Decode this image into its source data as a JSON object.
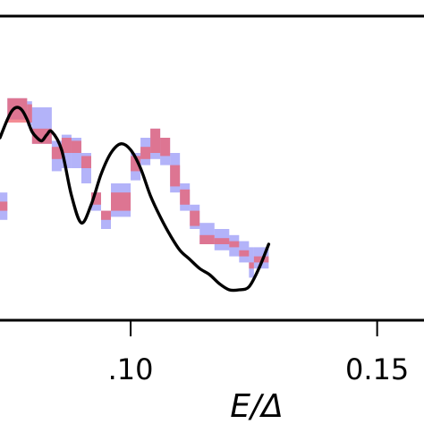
{
  "chart_data": {
    "type": "line",
    "xlabel": "E/Δ",
    "x_ticks": [
      {
        "value": 0.1,
        "label": ".10"
      },
      {
        "value": 0.15,
        "label": "0.15"
      }
    ],
    "xlim": [
      0.0735,
      0.1595
    ],
    "ylim": [
      0.0,
      1.0
    ],
    "grid": false,
    "step_bins": [
      {
        "x0": 0.0735,
        "x1": 0.075,
        "blue_low": 0.33,
        "blue_high": 0.42,
        "red_low": 0.36,
        "red_high": 0.39
      },
      {
        "x0": 0.075,
        "x1": 0.079,
        "blue_low": 0.66,
        "blue_high": 0.73,
        "red_low": 0.65,
        "red_high": 0.73
      },
      {
        "x0": 0.079,
        "x1": 0.08,
        "blue_low": 0.64,
        "blue_high": 0.72,
        "red_low": 0.65,
        "red_high": 0.71
      },
      {
        "x0": 0.08,
        "x1": 0.084,
        "blue_low": 0.58,
        "blue_high": 0.7,
        "red_low": 0.58,
        "red_high": 0.63
      },
      {
        "x0": 0.084,
        "x1": 0.086,
        "blue_low": 0.49,
        "blue_high": 0.59,
        "red_low": 0.53,
        "red_high": 0.57
      },
      {
        "x0": 0.086,
        "x1": 0.088,
        "blue_low": 0.5,
        "blue_high": 0.61,
        "red_low": 0.55,
        "red_high": 0.6
      },
      {
        "x0": 0.088,
        "x1": 0.09,
        "blue_low": 0.5,
        "blue_high": 0.6,
        "red_low": 0.55,
        "red_high": 0.59
      },
      {
        "x0": 0.09,
        "x1": 0.092,
        "blue_low": 0.45,
        "blue_high": 0.55,
        "red_low": 0.5,
        "red_high": 0.54
      },
      {
        "x0": 0.092,
        "x1": 0.094,
        "blue_low": 0.36,
        "blue_high": 0.42,
        "red_low": 0.38,
        "red_high": 0.42
      },
      {
        "x0": 0.094,
        "x1": 0.096,
        "blue_low": 0.3,
        "blue_high": 0.36,
        "red_low": 0.33,
        "red_high": 0.36
      },
      {
        "x0": 0.096,
        "x1": 0.1,
        "blue_low": 0.34,
        "blue_high": 0.45,
        "red_low": 0.36,
        "red_high": 0.42
      },
      {
        "x0": 0.1,
        "x1": 0.102,
        "blue_low": 0.46,
        "blue_high": 0.55,
        "red_low": 0.49,
        "red_high": 0.54
      },
      {
        "x0": 0.102,
        "x1": 0.104,
        "blue_low": 0.51,
        "blue_high": 0.6,
        "red_low": 0.53,
        "red_high": 0.57
      },
      {
        "x0": 0.104,
        "x1": 0.106,
        "blue_low": 0.53,
        "blue_high": 0.63,
        "red_low": 0.55,
        "red_high": 0.63
      },
      {
        "x0": 0.106,
        "x1": 0.108,
        "blue_low": 0.51,
        "blue_high": 0.6,
        "red_low": 0.54,
        "red_high": 0.6
      },
      {
        "x0": 0.108,
        "x1": 0.11,
        "blue_low": 0.42,
        "blue_high": 0.55,
        "red_low": 0.44,
        "red_high": 0.51
      },
      {
        "x0": 0.11,
        "x1": 0.112,
        "blue_low": 0.36,
        "blue_high": 0.45,
        "red_low": 0.38,
        "red_high": 0.43
      },
      {
        "x0": 0.112,
        "x1": 0.114,
        "blue_low": 0.3,
        "blue_high": 0.38,
        "red_low": 0.31,
        "red_high": 0.36
      },
      {
        "x0": 0.114,
        "x1": 0.117,
        "blue_low": 0.25,
        "blue_high": 0.32,
        "red_low": 0.25,
        "red_high": 0.28
      },
      {
        "x0": 0.117,
        "x1": 0.12,
        "blue_low": 0.23,
        "blue_high": 0.3,
        "red_low": 0.25,
        "red_high": 0.27
      },
      {
        "x0": 0.12,
        "x1": 0.122,
        "blue_low": 0.21,
        "blue_high": 0.28,
        "red_low": 0.24,
        "red_high": 0.26
      },
      {
        "x0": 0.122,
        "x1": 0.124,
        "blue_low": 0.19,
        "blue_high": 0.26,
        "red_low": 0.21,
        "red_high": 0.23
      },
      {
        "x0": 0.124,
        "x1": 0.125,
        "blue_low": 0.14,
        "blue_high": 0.24,
        "red_low": 0.17,
        "red_high": 0.19
      },
      {
        "x0": 0.125,
        "x1": 0.128,
        "blue_low": 0.17,
        "blue_high": 0.24,
        "red_low": 0.19,
        "red_high": 0.21
      }
    ],
    "curve": {
      "x": [
        0.0735,
        0.075,
        0.076,
        0.077,
        0.078,
        0.079,
        0.08,
        0.081,
        0.082,
        0.083,
        0.084,
        0.086,
        0.088,
        0.09,
        0.092,
        0.094,
        0.096,
        0.098,
        0.1,
        0.102,
        0.104,
        0.106,
        0.108,
        0.11,
        0.112,
        0.114,
        0.116,
        0.118,
        0.12,
        0.122,
        0.124,
        0.126,
        0.128
      ],
      "y": [
        0.6,
        0.66,
        0.69,
        0.7,
        0.69,
        0.66,
        0.62,
        0.6,
        0.59,
        0.61,
        0.62,
        0.56,
        0.41,
        0.32,
        0.38,
        0.48,
        0.55,
        0.58,
        0.56,
        0.5,
        0.41,
        0.34,
        0.28,
        0.23,
        0.2,
        0.17,
        0.15,
        0.12,
        0.1,
        0.1,
        0.11,
        0.17,
        0.25
      ]
    }
  }
}
